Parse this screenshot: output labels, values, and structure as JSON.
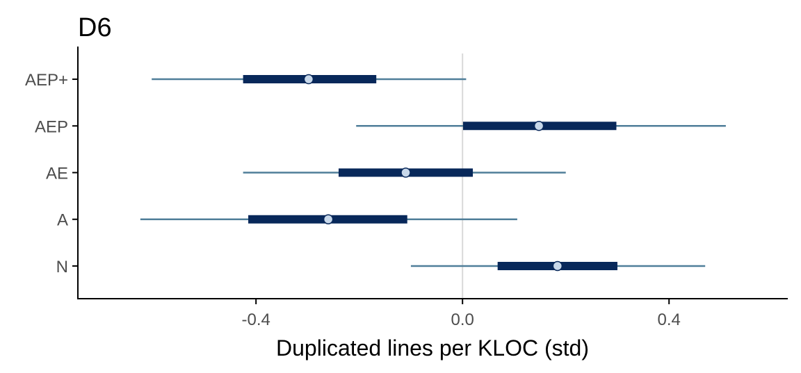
{
  "chart_data": {
    "type": "interval",
    "title": "D6",
    "xlabel": "Duplicated lines per KLOC (std)",
    "ylabel": "",
    "xlim": [
      -0.745,
      0.63
    ],
    "x_ticks": [
      -0.4,
      0.0,
      0.4
    ],
    "x_tick_labels": [
      "-0.4",
      "0.0",
      "0.4"
    ],
    "reference_line": 0,
    "grid": false,
    "legend": "none",
    "categories": [
      "AEP+",
      "AEP",
      "AE",
      "A",
      "N"
    ],
    "intervals": [
      {
        "label": "AEP+",
        "point": -0.298,
        "inner": [
          -0.425,
          -0.167
        ],
        "outer": [
          -0.602,
          0.007
        ]
      },
      {
        "label": "AEP",
        "point": 0.148,
        "inner": [
          0.001,
          0.298
        ],
        "outer": [
          -0.206,
          0.51
        ]
      },
      {
        "label": "AE",
        "point": -0.11,
        "inner": [
          -0.24,
          0.02
        ],
        "outer": [
          -0.425,
          0.2
        ]
      },
      {
        "label": "A",
        "point": -0.26,
        "inner": [
          -0.415,
          -0.107
        ],
        "outer": [
          -0.624,
          0.106
        ]
      },
      {
        "label": "N",
        "point": 0.184,
        "inner": [
          0.068,
          0.3
        ],
        "outer": [
          -0.1,
          0.47
        ]
      }
    ],
    "colors": {
      "outer": "#4f7e99",
      "inner": "#08285a",
      "point_fill": "#c8d8ea",
      "point_stroke": "#08285a",
      "reference": "#d9d9d9",
      "axis": "#000000"
    }
  }
}
